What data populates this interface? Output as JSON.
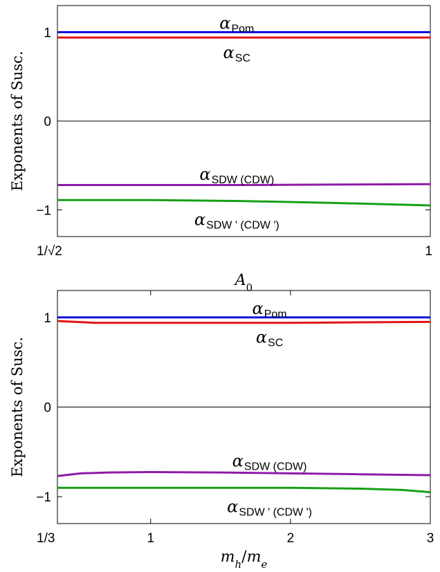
{
  "chart_data": [
    {
      "type": "line",
      "xlabel": "A",
      "xlabel_sub": "0",
      "ylabel": "Exponents of Susc.",
      "xlim": [
        0.7071,
        1.0
      ],
      "ylim": [
        -1.3,
        1.3
      ],
      "xticks": [
        {
          "value": 0.7071,
          "label": "1/√2"
        },
        {
          "value": 1.0,
          "label": "1"
        }
      ],
      "yticks": [
        {
          "value": 1,
          "label": "1"
        },
        {
          "value": 0,
          "label": "0"
        },
        {
          "value": -1,
          "label": "−1"
        }
      ],
      "zero_line": true,
      "series": [
        {
          "name": "Pom",
          "color": "#1010e0",
          "x": [
            0.7071,
            0.78,
            0.85,
            0.92,
            1.0
          ],
          "y": [
            1.0,
            1.0,
            1.0,
            1.0,
            1.0
          ]
        },
        {
          "name": "SC",
          "color": "#e01515",
          "x": [
            0.7071,
            0.78,
            0.85,
            0.92,
            1.0
          ],
          "y": [
            0.94,
            0.94,
            0.94,
            0.94,
            0.94
          ]
        },
        {
          "name": "SDW (CDW)",
          "color": "#8e1aa8",
          "x": [
            0.7071,
            0.78,
            0.85,
            0.92,
            1.0
          ],
          "y": [
            -0.72,
            -0.72,
            -0.72,
            -0.715,
            -0.71
          ]
        },
        {
          "name": "SDW ' (CDW ')",
          "color": "#15a015",
          "x": [
            0.7071,
            0.78,
            0.85,
            0.92,
            1.0
          ],
          "y": [
            -0.89,
            -0.89,
            -0.9,
            -0.92,
            -0.95
          ]
        }
      ],
      "annotations": [
        {
          "text": "α",
          "sub": "Pom",
          "series": "Pom",
          "at_x": 0.848,
          "at_y": 1.1
        },
        {
          "text": "α",
          "sub": "SC",
          "series": "SC",
          "at_x": 0.848,
          "at_y": 0.77
        },
        {
          "text": "α",
          "sub": "SDW (CDW)",
          "series": "SDW (CDW)",
          "at_x": 0.848,
          "at_y": -0.6
        },
        {
          "text": "α",
          "sub": "SDW ' (CDW ')",
          "series": "SDW ' (CDW ')",
          "at_x": 0.848,
          "at_y": -1.11
        }
      ]
    },
    {
      "type": "line",
      "xlabel": "m",
      "xlabel_sub": "h",
      "xlabel_sep": "/",
      "xlabel2": "m",
      "xlabel2_sub": "e",
      "ylabel": "Exponents of Susc.",
      "xlim": [
        0.3333,
        3.0
      ],
      "ylim": [
        -1.3,
        1.3
      ],
      "xticks": [
        {
          "value": 0.3333,
          "label": "1/3"
        },
        {
          "value": 1,
          "label": "1"
        },
        {
          "value": 2,
          "label": "2"
        },
        {
          "value": 3,
          "label": "3"
        }
      ],
      "yticks": [
        {
          "value": 1,
          "label": "1"
        },
        {
          "value": 0,
          "label": "0"
        },
        {
          "value": -1,
          "label": "−1"
        }
      ],
      "zero_line": true,
      "series": [
        {
          "name": "Pom",
          "color": "#1010e0",
          "x": [
            0.3333,
            1.0,
            2.0,
            3.0
          ],
          "y": [
            1.0,
            1.0,
            1.0,
            1.0
          ]
        },
        {
          "name": "SC",
          "color": "#e01515",
          "x": [
            0.3333,
            0.6,
            1.0,
            1.5,
            2.0,
            2.5,
            3.0
          ],
          "y": [
            0.96,
            0.94,
            0.94,
            0.94,
            0.94,
            0.945,
            0.95
          ]
        },
        {
          "name": "SDW (CDW)",
          "color": "#8e1aa8",
          "x": [
            0.3333,
            0.5,
            0.7,
            1.0,
            1.5,
            2.0,
            2.5,
            3.0
          ],
          "y": [
            -0.77,
            -0.74,
            -0.73,
            -0.725,
            -0.73,
            -0.74,
            -0.75,
            -0.76
          ]
        },
        {
          "name": "SDW ' (CDW ')",
          "color": "#15a015",
          "x": [
            0.3333,
            1.0,
            1.5,
            2.0,
            2.5,
            2.8,
            3.0
          ],
          "y": [
            -0.9,
            -0.9,
            -0.9,
            -0.9,
            -0.91,
            -0.925,
            -0.95
          ]
        }
      ],
      "annotations": [
        {
          "text": "α",
          "sub": "Pom",
          "series": "Pom",
          "at_x": 1.85,
          "at_y": 1.1
        },
        {
          "text": "α",
          "sub": "SC",
          "series": "SC",
          "at_x": 1.85,
          "at_y": 0.78
        },
        {
          "text": "α",
          "sub": "SDW (CDW)",
          "series": "SDW (CDW)",
          "at_x": 1.85,
          "at_y": -0.6
        },
        {
          "text": "α",
          "sub": "SDW ' (CDW ')",
          "series": "SDW ' (CDW ')",
          "at_x": 1.85,
          "at_y": -1.11
        }
      ]
    }
  ]
}
